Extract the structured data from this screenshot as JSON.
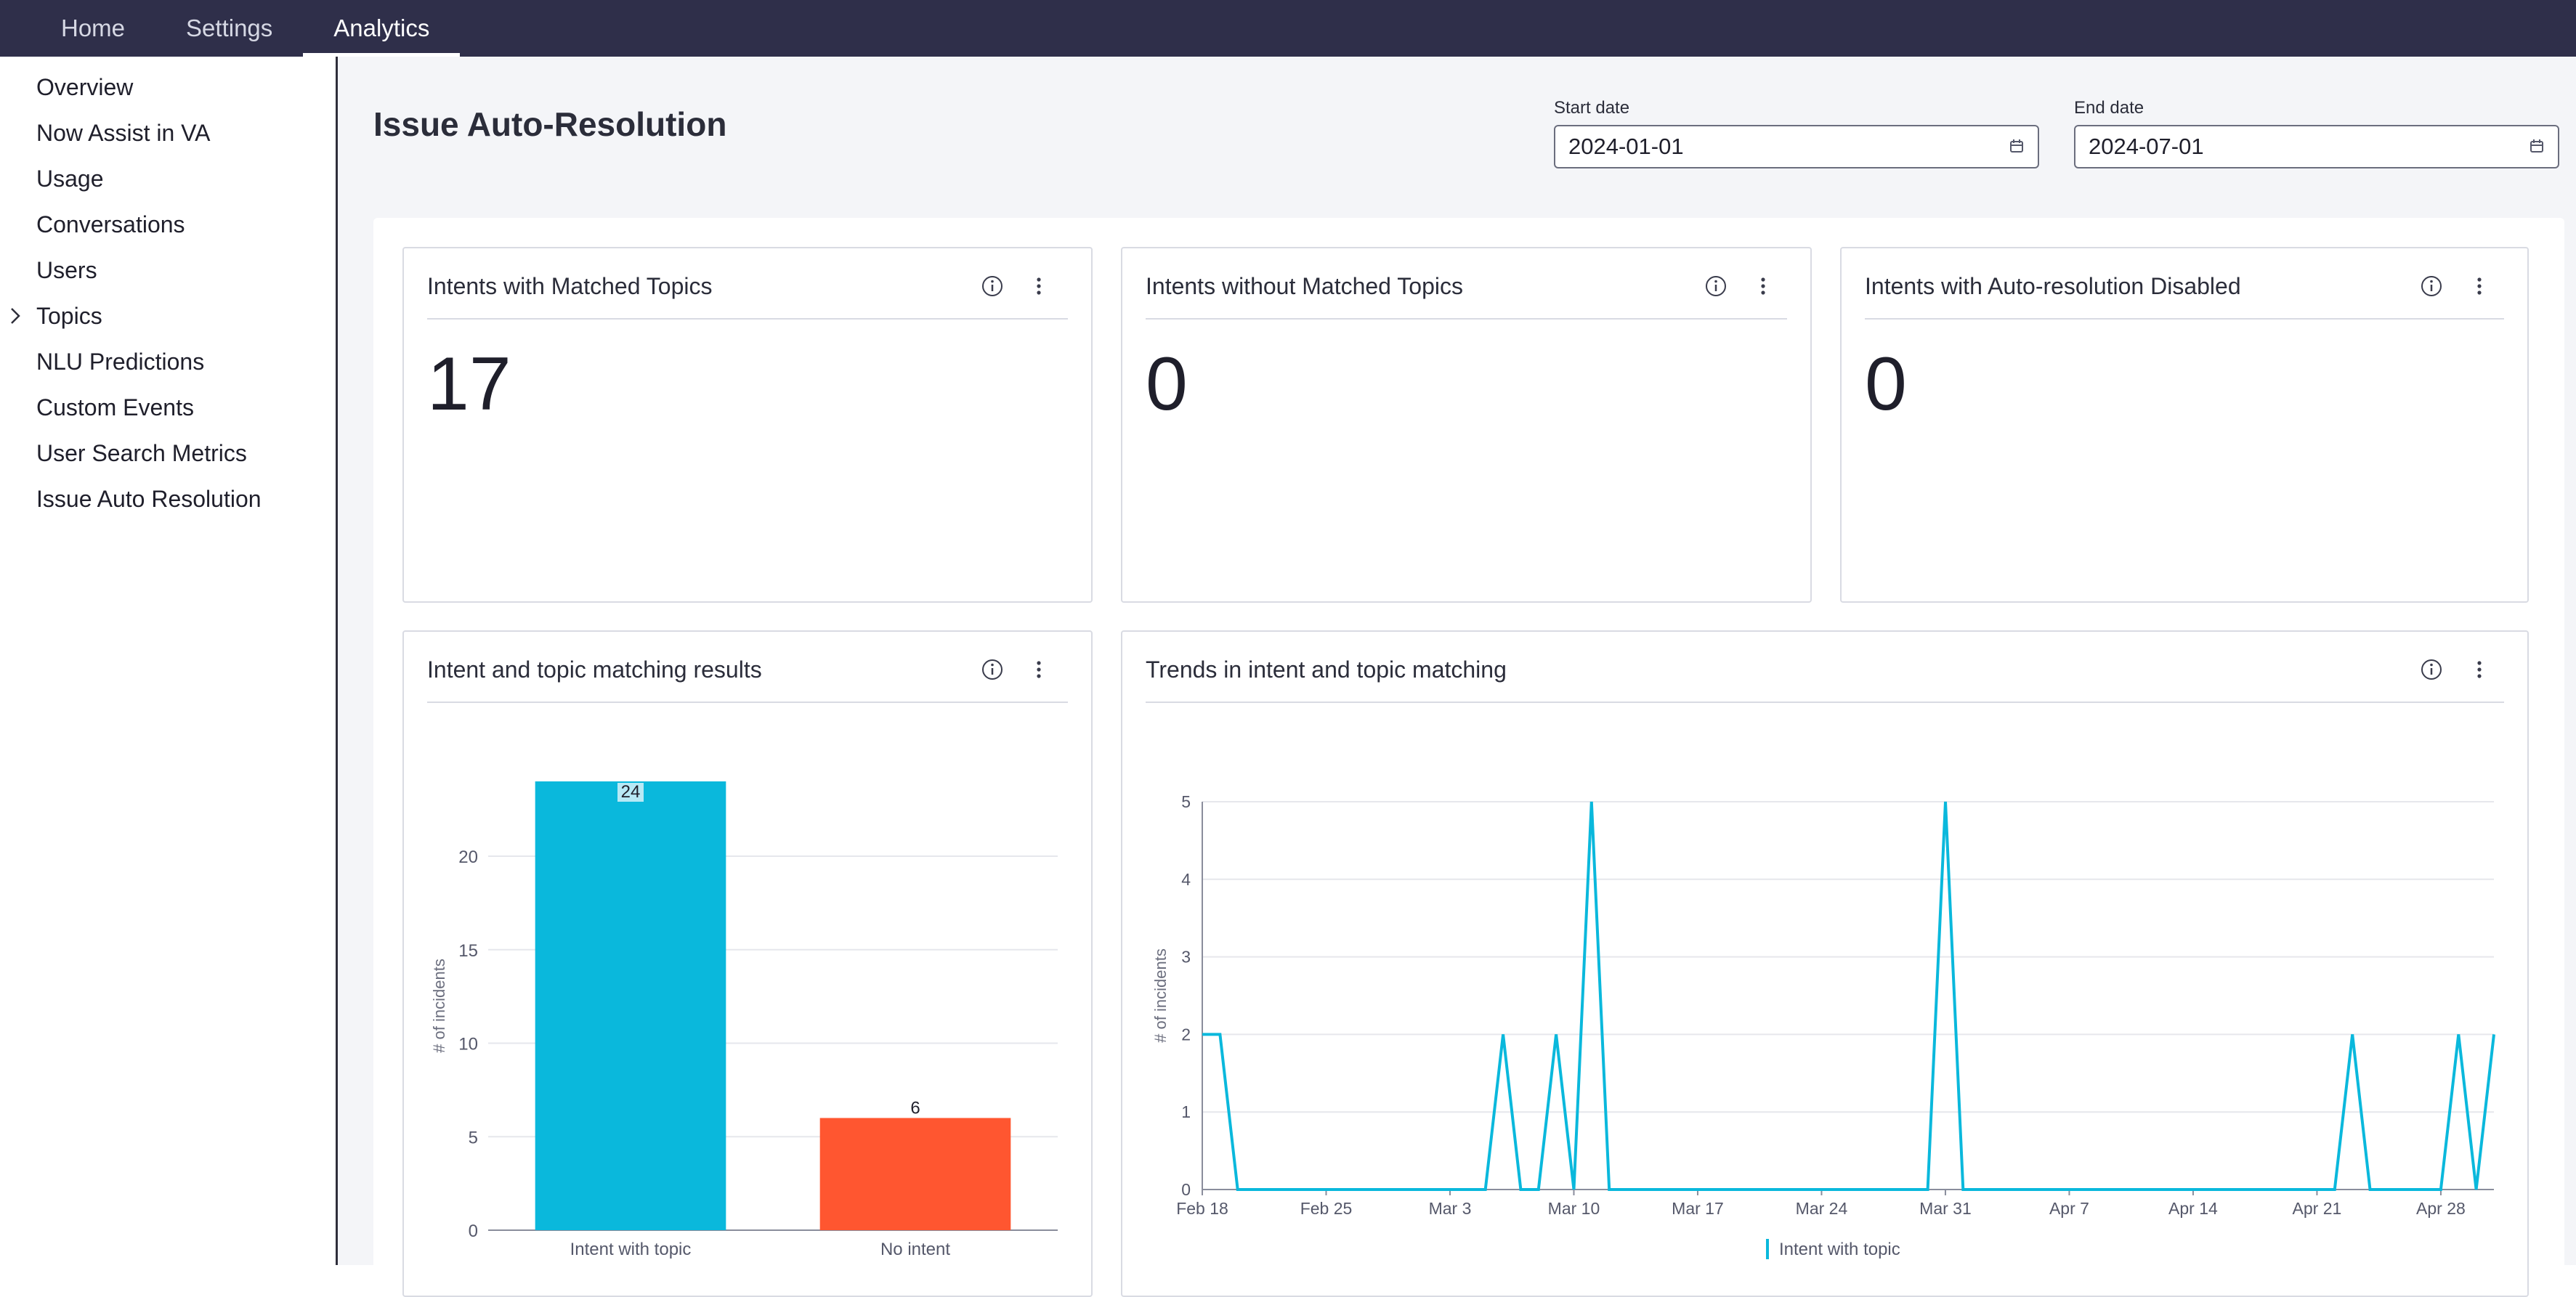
{
  "topnav": {
    "tabs": [
      {
        "label": "Home",
        "active": false
      },
      {
        "label": "Settings",
        "active": false
      },
      {
        "label": "Analytics",
        "active": true
      }
    ]
  },
  "sidebar": {
    "items": [
      {
        "label": "Overview"
      },
      {
        "label": "Now Assist in VA"
      },
      {
        "label": "Usage"
      },
      {
        "label": "Conversations"
      },
      {
        "label": "Users"
      },
      {
        "label": "Topics",
        "icon": "chevron-right-icon"
      },
      {
        "label": "NLU Predictions"
      },
      {
        "label": "Custom Events"
      },
      {
        "label": "User Search Metrics"
      },
      {
        "label": "Issue Auto Resolution"
      }
    ]
  },
  "main": {
    "title": "Issue Auto-Resolution",
    "start_date": {
      "label": "Start date",
      "value": "2024-01-01",
      "icon": "calendar-icon"
    },
    "end_date": {
      "label": "End date",
      "value": "2024-07-01",
      "icon": "calendar-icon"
    },
    "kpis": [
      {
        "title": "Intents with Matched Topics",
        "value": "17"
      },
      {
        "title": "Intents without Matched Topics",
        "value": "0"
      },
      {
        "title": "Intents with Auto-resolution Disabled",
        "value": "0"
      }
    ]
  },
  "colors": {
    "nav_bg": "#2f2f4a",
    "accent_cyan": "#0ab8dc",
    "accent_orange": "#ff5630"
  },
  "chart_data": [
    {
      "type": "bar",
      "title": "Intent and topic matching results",
      "categories": [
        "Intent with topic",
        "No intent"
      ],
      "values": [
        24,
        6
      ],
      "colors": [
        "#0ab8dc",
        "#ff5630"
      ],
      "data_labels": [
        "24",
        "6"
      ],
      "ylabel": "# of incidents",
      "xlabel": "",
      "ylim": [
        0,
        24
      ],
      "yticks": [
        0,
        5,
        10,
        15,
        20
      ],
      "grid": true
    },
    {
      "type": "line",
      "title": "Trends in intent and topic matching",
      "ylabel": "# of incidents",
      "xlabel": "",
      "ylim": [
        0,
        5
      ],
      "yticks": [
        0,
        1,
        2,
        3,
        4,
        5
      ],
      "x_start": "2024-02-18",
      "x_end": "2024-05-01",
      "xticks": [
        {
          "date": "2024-02-18",
          "label": "Feb 18"
        },
        {
          "date": "2024-02-25",
          "label": "Feb 25"
        },
        {
          "date": "2024-03-03",
          "label": "Mar 3"
        },
        {
          "date": "2024-03-10",
          "label": "Mar 10"
        },
        {
          "date": "2024-03-17",
          "label": "Mar 17"
        },
        {
          "date": "2024-03-24",
          "label": "Mar 24"
        },
        {
          "date": "2024-03-31",
          "label": "Mar 31"
        },
        {
          "date": "2024-04-07",
          "label": "Apr 7"
        },
        {
          "date": "2024-04-14",
          "label": "Apr 14"
        },
        {
          "date": "2024-04-21",
          "label": "Apr 21"
        },
        {
          "date": "2024-04-28",
          "label": "Apr 28"
        }
      ],
      "grid": true,
      "legend_position": "bottom",
      "series": [
        {
          "name": "Intent with topic",
          "color": "#0ab8dc",
          "points": [
            {
              "x": "2024-02-18",
              "y": 2
            },
            {
              "x": "2024-02-19",
              "y": 2
            },
            {
              "x": "2024-02-20",
              "y": 0
            },
            {
              "x": "2024-03-05",
              "y": 0
            },
            {
              "x": "2024-03-06",
              "y": 2
            },
            {
              "x": "2024-03-07",
              "y": 0
            },
            {
              "x": "2024-03-08",
              "y": 0
            },
            {
              "x": "2024-03-09",
              "y": 2
            },
            {
              "x": "2024-03-10",
              "y": 0
            },
            {
              "x": "2024-03-11",
              "y": 5
            },
            {
              "x": "2024-03-12",
              "y": 0
            },
            {
              "x": "2024-03-30",
              "y": 0
            },
            {
              "x": "2024-03-31",
              "y": 5
            },
            {
              "x": "2024-04-01",
              "y": 0
            },
            {
              "x": "2024-04-22",
              "y": 0
            },
            {
              "x": "2024-04-23",
              "y": 2
            },
            {
              "x": "2024-04-24",
              "y": 0
            },
            {
              "x": "2024-04-28",
              "y": 0
            },
            {
              "x": "2024-04-29",
              "y": 2
            },
            {
              "x": "2024-04-30",
              "y": 0
            },
            {
              "x": "2024-05-01",
              "y": 2
            }
          ]
        }
      ]
    }
  ]
}
